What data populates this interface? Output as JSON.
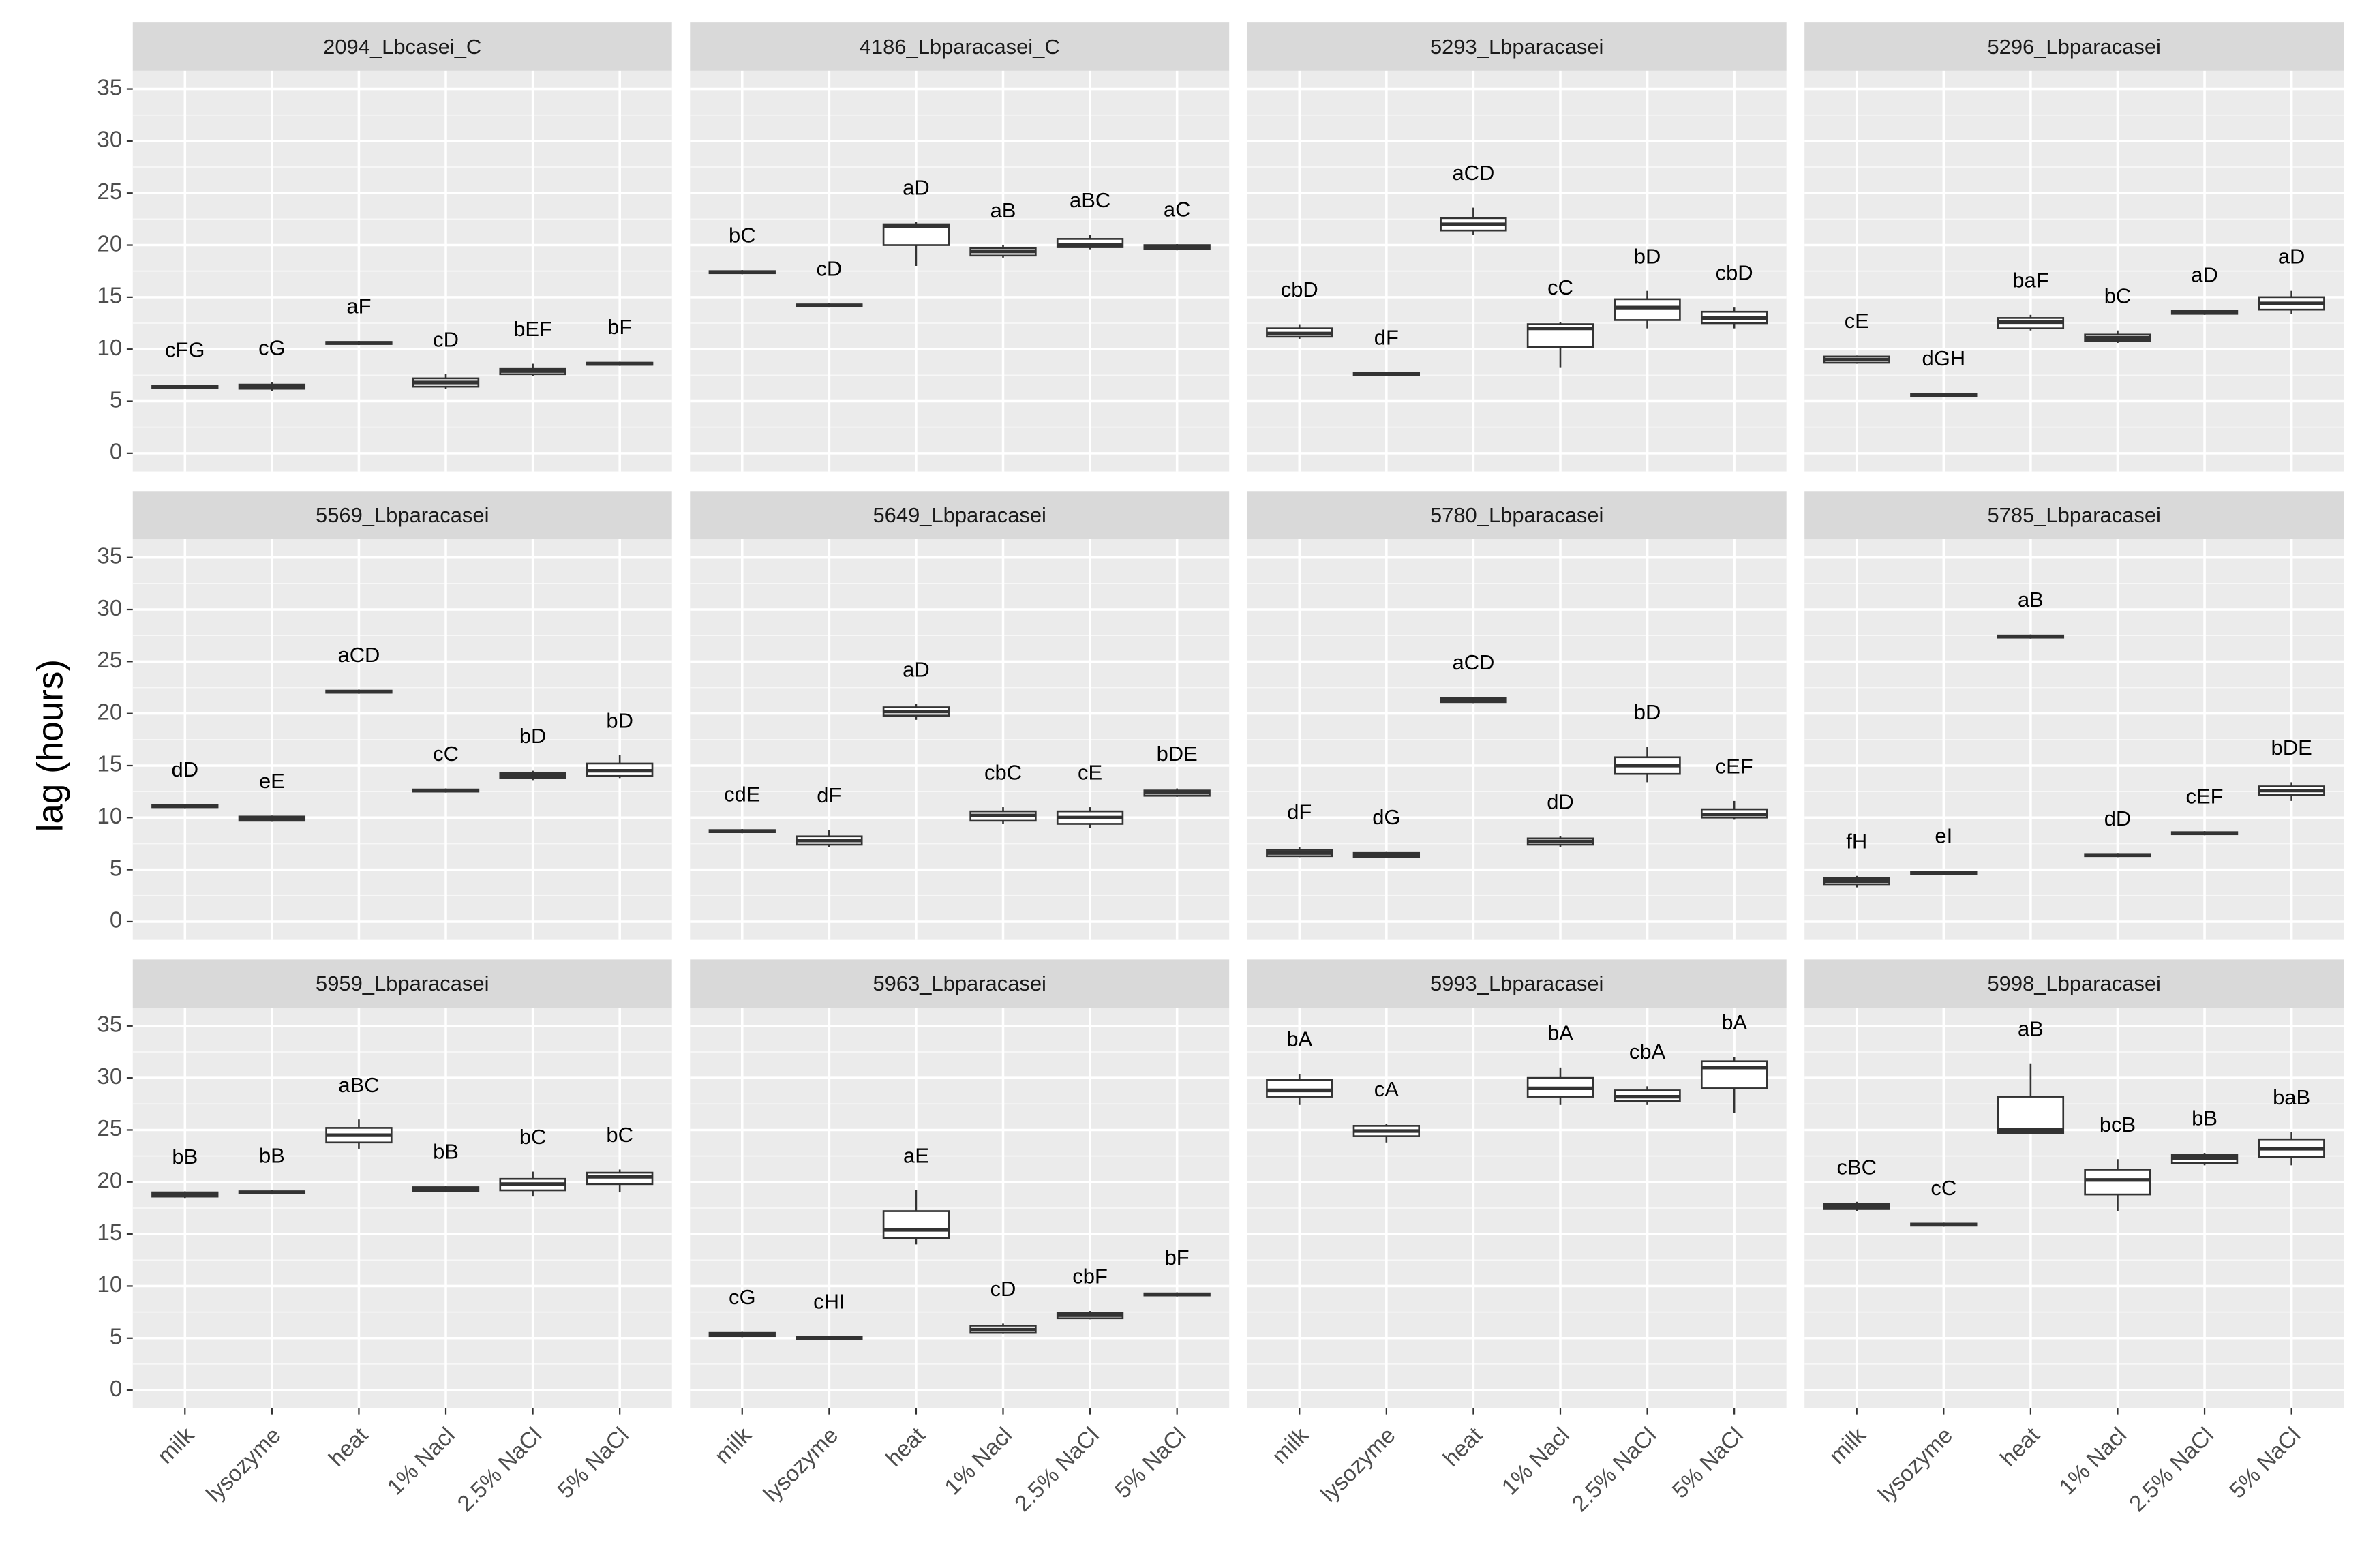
{
  "chart_data": {
    "type": "box",
    "ylabel": "lag (hours)",
    "categories": [
      "milk",
      "lysozyme",
      "heat",
      "1% Nacl",
      "2.5% NaCl",
      "5% NaCl"
    ],
    "ylim": [
      -1.75,
      36.75
    ],
    "yticks": [
      0,
      5,
      10,
      15,
      20,
      25,
      30,
      35
    ],
    "grid": true,
    "panels": [
      {
        "title": "2094_Lbcasei_C",
        "boxes": [
          [
            6.2,
            6.3,
            6.4,
            6.5,
            6.6
          ],
          [
            6.0,
            6.2,
            6.4,
            6.6,
            6.8
          ],
          [
            10.4,
            10.5,
            10.6,
            10.7,
            10.8
          ],
          [
            6.2,
            6.4,
            6.8,
            7.2,
            7.6
          ],
          [
            7.4,
            7.6,
            7.9,
            8.1,
            8.6
          ],
          [
            8.4,
            8.5,
            8.6,
            8.7,
            8.8
          ]
        ],
        "labels": [
          "cFG",
          "cG",
          "aF",
          "cD",
          "bEF",
          "bF"
        ]
      },
      {
        "title": "4186_Lbparacasei_C",
        "boxes": [
          [
            17.2,
            17.3,
            17.4,
            17.5,
            17.6
          ],
          [
            14.0,
            14.1,
            14.2,
            14.3,
            14.4
          ],
          [
            18.0,
            20.0,
            21.8,
            22.0,
            22.2
          ],
          [
            18.8,
            19.0,
            19.4,
            19.7,
            20.0
          ],
          [
            19.6,
            19.8,
            20.0,
            20.6,
            21.0
          ],
          [
            19.5,
            19.6,
            19.8,
            20.0,
            20.1
          ]
        ],
        "labels": [
          "bC",
          "cD",
          "aD",
          "aB",
          "aBC",
          "aC"
        ]
      },
      {
        "title": "5293_Lbparacasei",
        "boxes": [
          [
            11.0,
            11.2,
            11.5,
            12.0,
            12.4
          ],
          [
            7.4,
            7.5,
            7.6,
            7.7,
            7.8
          ],
          [
            21.0,
            21.4,
            22.0,
            22.6,
            23.6
          ],
          [
            8.2,
            10.2,
            12.0,
            12.4,
            12.6
          ],
          [
            12.0,
            12.8,
            14.0,
            14.8,
            15.6
          ],
          [
            12.0,
            12.5,
            13.0,
            13.6,
            14.0
          ]
        ],
        "labels": [
          "cbD",
          "dF",
          "aCD",
          "cC",
          "bD",
          "cbD"
        ]
      },
      {
        "title": "5296_Lbparacasei",
        "boxes": [
          [
            8.6,
            8.7,
            9.0,
            9.3,
            9.4
          ],
          [
            5.4,
            5.5,
            5.6,
            5.7,
            5.8
          ],
          [
            11.8,
            12.0,
            12.6,
            13.0,
            13.3
          ],
          [
            10.6,
            10.8,
            11.1,
            11.4,
            11.8
          ],
          [
            13.3,
            13.4,
            13.6,
            13.7,
            13.8
          ],
          [
            13.4,
            13.8,
            14.4,
            15.0,
            15.6
          ]
        ],
        "labels": [
          "cE",
          "dGH",
          "baF",
          "bC",
          "aD",
          "aD"
        ]
      },
      {
        "title": "5569_Lbparacasei",
        "boxes": [
          [
            10.9,
            11.0,
            11.1,
            11.2,
            11.3
          ],
          [
            9.6,
            9.7,
            9.9,
            10.1,
            10.2
          ],
          [
            21.9,
            22.0,
            22.1,
            22.2,
            22.3
          ],
          [
            12.4,
            12.5,
            12.6,
            12.7,
            12.8
          ],
          [
            13.6,
            13.8,
            14.0,
            14.3,
            14.5
          ],
          [
            13.8,
            14.0,
            14.5,
            15.2,
            16.0
          ]
        ],
        "labels": [
          "dD",
          "eE",
          "aCD",
          "cC",
          "bD",
          "bD"
        ]
      },
      {
        "title": "5649_Lbparacasei",
        "boxes": [
          [
            8.5,
            8.6,
            8.7,
            8.8,
            8.9
          ],
          [
            7.2,
            7.4,
            7.8,
            8.2,
            8.8
          ],
          [
            19.4,
            19.8,
            20.2,
            20.6,
            20.9
          ],
          [
            9.4,
            9.7,
            10.2,
            10.6,
            11.0
          ],
          [
            9.0,
            9.4,
            10.0,
            10.6,
            11.0
          ],
          [
            12.0,
            12.1,
            12.4,
            12.6,
            12.8
          ]
        ],
        "labels": [
          "cdE",
          "dF",
          "aD",
          "cbC",
          "cE",
          "bDE"
        ]
      },
      {
        "title": "5780_Lbparacasei",
        "boxes": [
          [
            6.2,
            6.3,
            6.6,
            6.9,
            7.2
          ],
          [
            6.1,
            6.2,
            6.4,
            6.6,
            6.7
          ],
          [
            21.0,
            21.1,
            21.3,
            21.5,
            21.6
          ],
          [
            7.2,
            7.4,
            7.7,
            8.0,
            8.2
          ],
          [
            13.4,
            14.2,
            15.0,
            15.8,
            16.8
          ],
          [
            9.8,
            10.0,
            10.3,
            10.8,
            11.6
          ]
        ],
        "labels": [
          "dF",
          "dG",
          "aCD",
          "dD",
          "bD",
          "cEF"
        ]
      },
      {
        "title": "5785_Lbparacasei",
        "boxes": [
          [
            3.3,
            3.6,
            3.9,
            4.2,
            4.4
          ],
          [
            4.5,
            4.6,
            4.7,
            4.8,
            4.9
          ],
          [
            27.2,
            27.3,
            27.4,
            27.5,
            27.6
          ],
          [
            6.2,
            6.3,
            6.4,
            6.5,
            6.6
          ],
          [
            8.3,
            8.4,
            8.5,
            8.6,
            8.7
          ],
          [
            11.6,
            12.2,
            12.6,
            13.0,
            13.4
          ]
        ],
        "labels": [
          "fH",
          "eI",
          "aB",
          "dD",
          "cEF",
          "bDE"
        ]
      },
      {
        "title": "5959_Lbparacasei",
        "boxes": [
          [
            18.4,
            18.6,
            18.8,
            19.0,
            19.1
          ],
          [
            18.8,
            18.9,
            19.0,
            19.1,
            19.2
          ],
          [
            23.2,
            23.8,
            24.5,
            25.2,
            26.0
          ],
          [
            19.0,
            19.1,
            19.3,
            19.5,
            19.6
          ],
          [
            18.6,
            19.2,
            19.8,
            20.3,
            21.0
          ],
          [
            19.0,
            19.8,
            20.5,
            20.9,
            21.2
          ]
        ],
        "labels": [
          "bB",
          "bB",
          "aBC",
          "bB",
          "bC",
          "bC"
        ]
      },
      {
        "title": "5963_Lbparacasei",
        "boxes": [
          [
            5.1,
            5.2,
            5.3,
            5.5,
            5.6
          ],
          [
            4.8,
            4.9,
            5.0,
            5.1,
            5.2
          ],
          [
            14.0,
            14.6,
            15.4,
            17.2,
            19.2
          ],
          [
            5.4,
            5.5,
            5.8,
            6.2,
            6.4
          ],
          [
            6.8,
            6.9,
            7.2,
            7.4,
            7.6
          ],
          [
            9.0,
            9.1,
            9.2,
            9.3,
            9.4
          ]
        ],
        "labels": [
          "cG",
          "cHI",
          "aE",
          "cD",
          "cbF",
          "bF"
        ]
      },
      {
        "title": "5993_Lbparacasei",
        "boxes": [
          [
            27.4,
            28.2,
            28.8,
            29.8,
            30.4
          ],
          [
            23.8,
            24.4,
            24.9,
            25.4,
            25.6
          ],
          null,
          [
            27.4,
            28.2,
            29.0,
            30.0,
            31.0
          ],
          [
            27.4,
            27.8,
            28.2,
            28.8,
            29.2
          ],
          [
            26.6,
            29.0,
            31.0,
            31.6,
            32.0
          ]
        ],
        "labels": [
          "bA",
          "cA",
          null,
          "bA",
          "cbA",
          "bA"
        ]
      },
      {
        "title": "5998_Lbparacasei",
        "boxes": [
          [
            17.2,
            17.4,
            17.6,
            17.9,
            18.1
          ],
          [
            15.7,
            15.8,
            15.9,
            16.0,
            16.1
          ],
          [
            24.6,
            24.7,
            25.0,
            28.2,
            31.4
          ],
          [
            17.2,
            18.8,
            20.2,
            21.2,
            22.2
          ],
          [
            21.6,
            21.8,
            22.3,
            22.6,
            22.8
          ],
          [
            21.6,
            22.4,
            23.2,
            24.1,
            24.8
          ]
        ],
        "labels": [
          "cBC",
          "cC",
          "aB",
          "bcB",
          "bB",
          "baB"
        ]
      }
    ]
  }
}
